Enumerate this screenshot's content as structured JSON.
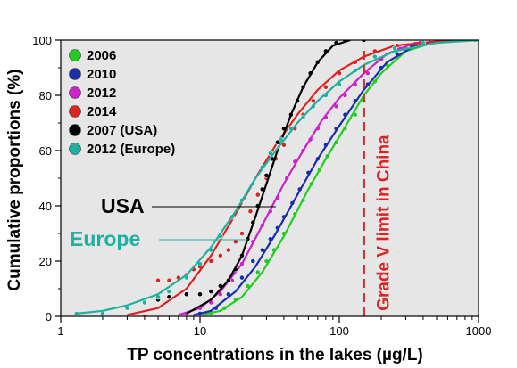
{
  "chart_data": {
    "type": "scatter",
    "xlabel": "TP concentrations in the lakes (µg/L)",
    "ylabel": "Cumulative proportions (%)",
    "xscale": "log",
    "xlim": [
      1,
      1000
    ],
    "ylim": [
      0,
      100
    ],
    "x_ticks": [
      1,
      10,
      100,
      1000
    ],
    "y_ticks": [
      0,
      20,
      40,
      60,
      80,
      100
    ],
    "grid": false,
    "plot_background": "#e6e6e6",
    "legend_position": "top-left",
    "series": [
      {
        "name": "2006",
        "color": "#22cc22",
        "marker": "circle",
        "points": [
          [
            12,
            1
          ],
          [
            15,
            3
          ],
          [
            18,
            6
          ],
          [
            22,
            11
          ],
          [
            26,
            16
          ],
          [
            30,
            20
          ],
          [
            34,
            24
          ],
          [
            40,
            30
          ],
          [
            48,
            37
          ],
          [
            55,
            42
          ],
          [
            63,
            48
          ],
          [
            72,
            53
          ],
          [
            82,
            58
          ],
          [
            95,
            63
          ],
          [
            110,
            68
          ],
          [
            130,
            73
          ],
          [
            150,
            78
          ],
          [
            180,
            85
          ],
          [
            220,
            91
          ],
          [
            260,
            95
          ],
          [
            300,
            97
          ],
          [
            380,
            99
          ],
          [
            500,
            100
          ],
          [
            700,
            100
          ],
          [
            950,
            100
          ]
        ],
        "fit": [
          [
            10,
            0.5
          ],
          [
            14,
            2
          ],
          [
            20,
            7
          ],
          [
            28,
            16
          ],
          [
            40,
            29
          ],
          [
            60,
            46
          ],
          [
            80,
            57
          ],
          [
            100,
            65
          ],
          [
            150,
            80
          ],
          [
            200,
            88
          ],
          [
            300,
            96
          ],
          [
            500,
            99.5
          ],
          [
            1000,
            100
          ]
        ]
      },
      {
        "name": "2010",
        "color": "#1a2eaa",
        "marker": "circle",
        "points": [
          [
            10,
            1
          ],
          [
            13,
            3
          ],
          [
            16,
            8
          ],
          [
            20,
            14
          ],
          [
            24,
            20
          ],
          [
            28,
            24
          ],
          [
            32,
            28
          ],
          [
            36,
            32
          ],
          [
            40,
            36
          ],
          [
            46,
            41
          ],
          [
            52,
            46
          ],
          [
            60,
            52
          ],
          [
            70,
            57
          ],
          [
            80,
            62
          ],
          [
            95,
            68
          ],
          [
            110,
            73
          ],
          [
            130,
            78
          ],
          [
            160,
            84
          ],
          [
            200,
            90
          ],
          [
            260,
            95
          ],
          [
            330,
            98
          ],
          [
            450,
            99
          ],
          [
            700,
            100
          ],
          [
            950,
            100
          ]
        ],
        "fit": [
          [
            9,
            0.5
          ],
          [
            12,
            2
          ],
          [
            18,
            9
          ],
          [
            25,
            18
          ],
          [
            35,
            30
          ],
          [
            50,
            44
          ],
          [
            70,
            57
          ],
          [
            100,
            69
          ],
          [
            150,
            82
          ],
          [
            220,
            92
          ],
          [
            350,
            98
          ],
          [
            600,
            100
          ],
          [
            1000,
            100
          ]
        ]
      },
      {
        "name": "2012",
        "color": "#cc22cc",
        "marker": "circle",
        "points": [
          [
            8,
            1
          ],
          [
            10,
            3
          ],
          [
            12,
            5
          ],
          [
            14,
            8
          ],
          [
            17,
            13
          ],
          [
            20,
            19
          ],
          [
            24,
            27
          ],
          [
            28,
            33
          ],
          [
            32,
            38
          ],
          [
            36,
            43
          ],
          [
            42,
            50
          ],
          [
            48,
            56
          ],
          [
            55,
            60
          ],
          [
            62,
            64
          ],
          [
            70,
            68
          ],
          [
            80,
            72
          ],
          [
            95,
            76
          ],
          [
            110,
            80
          ],
          [
            130,
            84
          ],
          [
            160,
            88
          ],
          [
            200,
            93
          ],
          [
            270,
            97
          ],
          [
            380,
            99
          ],
          [
            600,
            100
          ],
          [
            950,
            100
          ]
        ],
        "fit": [
          [
            7,
            0.5
          ],
          [
            10,
            3
          ],
          [
            14,
            9
          ],
          [
            20,
            19
          ],
          [
            28,
            33
          ],
          [
            40,
            48
          ],
          [
            55,
            60
          ],
          [
            75,
            71
          ],
          [
            100,
            79
          ],
          [
            150,
            88
          ],
          [
            220,
            95
          ],
          [
            350,
            99
          ],
          [
            1000,
            100
          ]
        ]
      },
      {
        "name": "2014",
        "color": "#dd2222",
        "marker": "circle",
        "points": [
          [
            2,
            0
          ],
          [
            4,
            0
          ],
          [
            5,
            13
          ],
          [
            6,
            13
          ],
          [
            7,
            14
          ],
          [
            8,
            15
          ],
          [
            9,
            17
          ],
          [
            10,
            18
          ],
          [
            12,
            20
          ],
          [
            14,
            22
          ],
          [
            16,
            24
          ],
          [
            18,
            27
          ],
          [
            20,
            30
          ],
          [
            23,
            38
          ],
          [
            26,
            44
          ],
          [
            30,
            50
          ],
          [
            35,
            57
          ],
          [
            40,
            62
          ],
          [
            48,
            68
          ],
          [
            55,
            73
          ],
          [
            65,
            78
          ],
          [
            80,
            83
          ],
          [
            100,
            88
          ],
          [
            130,
            92
          ],
          [
            180,
            96
          ],
          [
            260,
            98
          ],
          [
            400,
            99
          ],
          [
            700,
            100
          ],
          [
            950,
            100
          ]
        ],
        "fit": [
          [
            3,
            0.5
          ],
          [
            5,
            3
          ],
          [
            8,
            10
          ],
          [
            12,
            22
          ],
          [
            18,
            37
          ],
          [
            25,
            50
          ],
          [
            35,
            62
          ],
          [
            50,
            73
          ],
          [
            70,
            82
          ],
          [
            100,
            89
          ],
          [
            150,
            94
          ],
          [
            250,
            98
          ],
          [
            500,
            99.5
          ],
          [
            1000,
            100
          ]
        ]
      },
      {
        "name": "2007 (USA)",
        "color": "#000000",
        "marker": "circle",
        "points": [
          [
            5,
            6
          ],
          [
            6,
            7
          ],
          [
            8,
            8
          ],
          [
            10,
            8
          ],
          [
            12,
            9
          ],
          [
            14,
            11
          ],
          [
            16,
            13
          ],
          [
            18,
            17
          ],
          [
            20,
            22
          ],
          [
            22,
            28
          ],
          [
            24,
            34
          ],
          [
            26,
            40
          ],
          [
            28,
            46
          ],
          [
            30,
            51
          ],
          [
            33,
            57
          ],
          [
            36,
            63
          ],
          [
            40,
            68
          ],
          [
            45,
            73
          ],
          [
            50,
            78
          ],
          [
            55,
            83
          ],
          [
            62,
            88
          ],
          [
            70,
            92
          ],
          [
            80,
            96
          ],
          [
            95,
            99
          ],
          [
            110,
            100
          ],
          [
            150,
            100
          ]
        ],
        "fit": [
          [
            8,
            1
          ],
          [
            12,
            6
          ],
          [
            16,
            13
          ],
          [
            20,
            22
          ],
          [
            25,
            36
          ],
          [
            30,
            48
          ],
          [
            36,
            60
          ],
          [
            45,
            73
          ],
          [
            55,
            83
          ],
          [
            70,
            92
          ],
          [
            90,
            98
          ],
          [
            120,
            100
          ]
        ]
      },
      {
        "name": "2012 (Europe)",
        "color": "#20b0a0",
        "marker": "circle",
        "points": [
          [
            1.3,
            1
          ],
          [
            2,
            1
          ],
          [
            3,
            3
          ],
          [
            4,
            5
          ],
          [
            5,
            7
          ],
          [
            6,
            9
          ],
          [
            8,
            14
          ],
          [
            10,
            19
          ],
          [
            12,
            24
          ],
          [
            14,
            29
          ],
          [
            17,
            36
          ],
          [
            20,
            42
          ],
          [
            24,
            48
          ],
          [
            28,
            54
          ],
          [
            32,
            59
          ],
          [
            38,
            64
          ],
          [
            45,
            68
          ],
          [
            55,
            72
          ],
          [
            65,
            76
          ],
          [
            80,
            80
          ],
          [
            100,
            84
          ],
          [
            130,
            89
          ],
          [
            180,
            94
          ],
          [
            250,
            97
          ],
          [
            400,
            99
          ],
          [
            700,
            100
          ],
          [
            950,
            100
          ]
        ],
        "fit": [
          [
            1.3,
            1
          ],
          [
            2,
            2
          ],
          [
            3,
            4
          ],
          [
            5,
            8
          ],
          [
            8,
            15
          ],
          [
            12,
            25
          ],
          [
            18,
            38
          ],
          [
            25,
            50
          ],
          [
            35,
            60
          ],
          [
            50,
            70
          ],
          [
            70,
            78
          ],
          [
            100,
            85
          ],
          [
            150,
            91
          ],
          [
            250,
            96
          ],
          [
            500,
            99
          ],
          [
            1000,
            100
          ]
        ]
      }
    ],
    "reference_line": {
      "x": 150,
      "label": "Grade V limit in China",
      "color": "#dd2222",
      "style": "dashed"
    },
    "annotations": [
      {
        "text": "USA",
        "color": "#000000",
        "leader_to": [
          35,
          40
        ]
      },
      {
        "text": "Europe",
        "color": "#20b0a0",
        "leader_to": [
          22,
          28
        ]
      }
    ]
  }
}
